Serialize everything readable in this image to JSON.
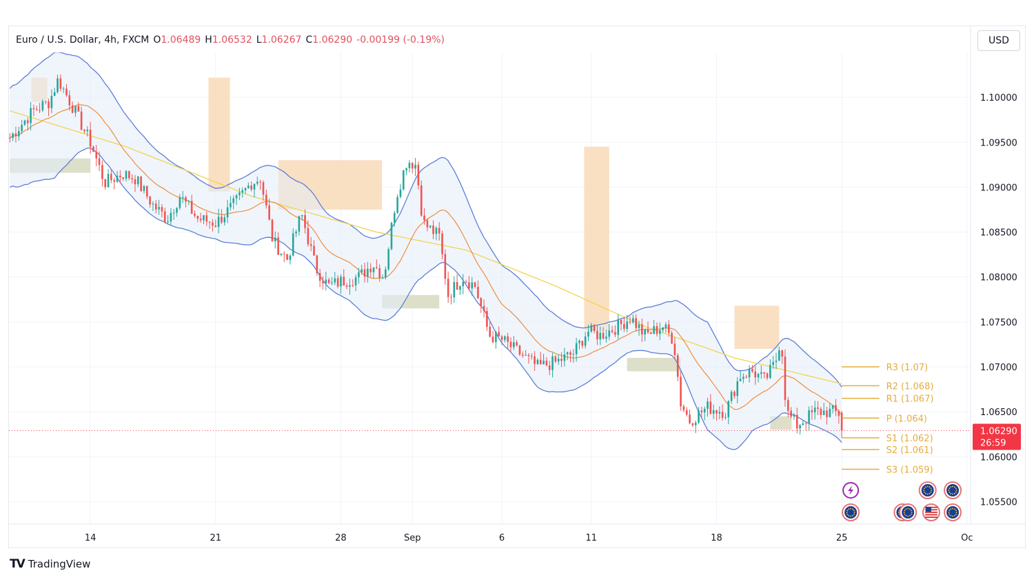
{
  "header": {
    "symbol": "Euro / U.S. Dollar, 4h, FXCM",
    "open_label": "O",
    "open": "1.06489",
    "high_label": "H",
    "high": "1.06532",
    "low_label": "L",
    "low": "1.06267",
    "close_label": "C",
    "close": "1.06290",
    "change": "-0.00199 (-0.19%)"
  },
  "currency": "USD",
  "brand": "TradingView",
  "price_tag": {
    "price": "1.06290",
    "countdown": "26:59"
  },
  "colors": {
    "up": "#26a69a",
    "down": "#ef5350",
    "band": "#5b7fd6",
    "fast_ma": "#f08c3a",
    "slow_ma": "#f2d34f",
    "pivot": "#e6ac3a",
    "tag": "#f23645",
    "supply": "#f9d8b3",
    "demand": "#d9dcc3"
  },
  "chart_data": {
    "type": "candlestick",
    "title": "Euro / U.S. Dollar, 4h, FXCM",
    "ylim": [
      1.0525,
      1.105
    ],
    "y_ticks": [
      "1.10000",
      "1.09500",
      "1.09000",
      "1.08500",
      "1.08000",
      "1.07500",
      "1.07000",
      "1.06500",
      "1.06000",
      "1.05500"
    ],
    "x_ticks": [
      {
        "label": "14",
        "day": 14
      },
      {
        "label": "21",
        "day": 21
      },
      {
        "label": "28",
        "day": 28
      },
      {
        "label": "Sep",
        "day": 32
      },
      {
        "label": "6",
        "day": 37
      },
      {
        "label": "11",
        "day": 42
      },
      {
        "label": "18",
        "day": 49
      },
      {
        "label": "25",
        "day": 56
      },
      {
        "label": "Oc",
        "day": 63
      }
    ],
    "x_range_days": [
      9.45,
      63.2
    ],
    "candles_per_day": 6,
    "close_path": [
      [
        9.5,
        1.0955
      ],
      [
        10.8,
        1.0985
      ],
      [
        11.7,
        1.0995
      ],
      [
        12.2,
        1.102
      ],
      [
        13.0,
        1.099
      ],
      [
        14.0,
        1.095
      ],
      [
        14.8,
        1.0905
      ],
      [
        15.8,
        1.0915
      ],
      [
        16.5,
        1.091
      ],
      [
        17.5,
        1.088
      ],
      [
        18.3,
        1.0865
      ],
      [
        19.0,
        1.089
      ],
      [
        20.0,
        1.0865
      ],
      [
        21.0,
        1.086
      ],
      [
        22.0,
        1.088
      ],
      [
        23.0,
        1.0905
      ],
      [
        23.5,
        1.091
      ],
      [
        24.2,
        1.084
      ],
      [
        25.0,
        1.082
      ],
      [
        25.8,
        1.087
      ],
      [
        26.6,
        1.081
      ],
      [
        27.3,
        1.079
      ],
      [
        28.0,
        1.0795
      ],
      [
        29.0,
        1.08
      ],
      [
        29.8,
        1.0815
      ],
      [
        30.4,
        1.08
      ],
      [
        31.1,
        1.089
      ],
      [
        31.7,
        1.093
      ],
      [
        32.2,
        1.0925
      ],
      [
        32.6,
        1.086
      ],
      [
        33.5,
        1.0845
      ],
      [
        34.0,
        1.078
      ],
      [
        34.8,
        1.08
      ],
      [
        35.5,
        1.079
      ],
      [
        36.3,
        1.0735
      ],
      [
        37.0,
        1.073
      ],
      [
        38.0,
        1.0715
      ],
      [
        39.0,
        1.07
      ],
      [
        40.0,
        1.0705
      ],
      [
        41.0,
        1.0715
      ],
      [
        41.8,
        1.074
      ],
      [
        42.5,
        1.0735
      ],
      [
        43.5,
        1.0745
      ],
      [
        44.2,
        1.0755
      ],
      [
        45.0,
        1.0735
      ],
      [
        46.0,
        1.0745
      ],
      [
        46.6,
        1.073
      ],
      [
        47.0,
        1.066
      ],
      [
        47.5,
        1.064
      ],
      [
        48.5,
        1.0655
      ],
      [
        49.5,
        1.065
      ],
      [
        50.3,
        1.069
      ],
      [
        51.0,
        1.0695
      ],
      [
        51.7,
        1.0685
      ],
      [
        52.3,
        1.0705
      ],
      [
        52.6,
        1.0735
      ],
      [
        52.9,
        1.065
      ],
      [
        53.5,
        1.0635
      ],
      [
        54.5,
        1.065
      ],
      [
        55.5,
        1.065
      ],
      [
        56.0,
        1.0647
      ],
      [
        56.15,
        1.0629
      ]
    ],
    "bollinger_width_path": [
      [
        9.5,
        0.0055
      ],
      [
        12.0,
        0.007
      ],
      [
        14.0,
        0.0045
      ],
      [
        17.0,
        0.004
      ],
      [
        21.0,
        0.0028
      ],
      [
        23.0,
        0.004
      ],
      [
        27.0,
        0.004
      ],
      [
        30.0,
        0.0045
      ],
      [
        32.5,
        0.006
      ],
      [
        34.0,
        0.0058
      ],
      [
        36.0,
        0.004
      ],
      [
        39.0,
        0.005
      ],
      [
        41.5,
        0.0032
      ],
      [
        44.0,
        0.002
      ],
      [
        46.5,
        0.003
      ],
      [
        48.5,
        0.006
      ],
      [
        51.0,
        0.0035
      ],
      [
        53.0,
        0.0042
      ],
      [
        56.2,
        0.003
      ]
    ],
    "slow_ma_path": [
      [
        9.5,
        1.0985
      ],
      [
        16.0,
        1.0945
      ],
      [
        23.0,
        1.089
      ],
      [
        30.0,
        1.085
      ],
      [
        35.0,
        1.083
      ],
      [
        40.0,
        1.079
      ],
      [
        45.0,
        1.0745
      ],
      [
        50.0,
        1.071
      ],
      [
        56.2,
        1.068
      ]
    ],
    "pivots": [
      {
        "label": "R3 (1.07)",
        "value": 1.07
      },
      {
        "label": "R2 (1.068)",
        "value": 1.0679
      },
      {
        "label": "R1 (1.067)",
        "value": 1.0665
      },
      {
        "label": "P (1.064)",
        "value": 1.0643
      },
      {
        "label": "S1 (1.062)",
        "value": 1.0621
      },
      {
        "label": "S2 (1.061)",
        "value": 1.0608
      },
      {
        "label": "S3 (1.059)",
        "value": 1.0586
      }
    ],
    "pivot_range_days": [
      56.0,
      58.1
    ],
    "last_price": 1.0629,
    "supply_zones": [
      {
        "d0": 10.7,
        "d1": 11.6,
        "y0": 1.0995,
        "y1": 1.1022
      },
      {
        "d0": 20.6,
        "d1": 21.8,
        "y0": 1.0895,
        "y1": 1.1022
      },
      {
        "d0": 24.5,
        "d1": 30.3,
        "y0": 1.0875,
        "y1": 1.093
      },
      {
        "d0": 41.6,
        "d1": 43.0,
        "y0": 1.074,
        "y1": 1.0945
      },
      {
        "d0": 50.0,
        "d1": 52.5,
        "y0": 1.072,
        "y1": 1.0768
      }
    ],
    "demand_zones": [
      {
        "d0": 9.5,
        "d1": 14.0,
        "y0": 1.0916,
        "y1": 1.0932
      },
      {
        "d0": 30.3,
        "d1": 33.5,
        "y0": 1.0765,
        "y1": 1.078
      },
      {
        "d0": 44.0,
        "d1": 47.0,
        "y0": 1.0695,
        "y1": 1.071
      },
      {
        "d0": 52.0,
        "d1": 53.2,
        "y0": 1.063,
        "y1": 1.0645
      }
    ],
    "events": [
      {
        "icon": "lightning-event-icon",
        "day": 56.5,
        "row": 0
      },
      {
        "icon": "eu-flag-event-icon",
        "day": 60.8,
        "row": 0
      },
      {
        "icon": "eu-flag-event-icon",
        "day": 62.2,
        "row": 0
      },
      {
        "icon": "eu-flag-event-icon",
        "day": 56.5,
        "row": 1
      },
      {
        "icon": "eu-flag-event-icon",
        "day": 59.4,
        "row": 1
      },
      {
        "icon": "eu-flag-event-icon",
        "day": 59.7,
        "row": 1
      },
      {
        "icon": "us-flag-event-icon",
        "day": 61.0,
        "row": 1
      },
      {
        "icon": "eu-flag-event-icon",
        "day": 62.2,
        "row": 1
      }
    ]
  }
}
